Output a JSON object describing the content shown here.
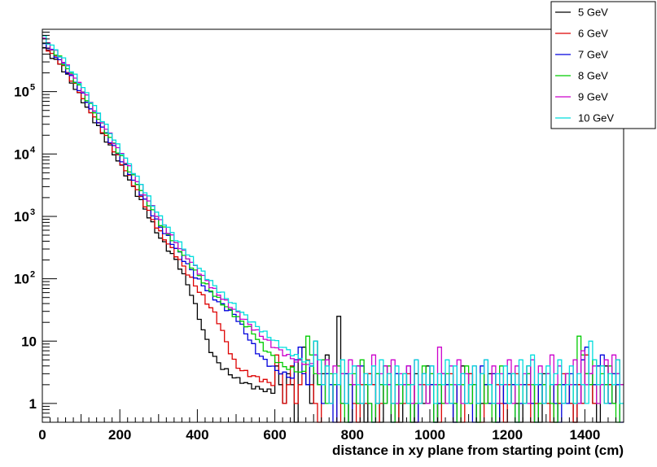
{
  "chart_data": {
    "type": "line",
    "step": true,
    "xlabel": "distance in xy plane from starting point (cm)",
    "ylabel": "",
    "xlim": [
      0,
      1500
    ],
    "ylim": [
      0.5,
      1000000
    ],
    "yscale": "log",
    "bin_width": 10,
    "grid": false,
    "legend_position": "top-right",
    "x_ticks": [
      {
        "value": 0,
        "label": "0"
      },
      {
        "value": 200,
        "label": "200"
      },
      {
        "value": 400,
        "label": "400"
      },
      {
        "value": 600,
        "label": "600"
      },
      {
        "value": 800,
        "label": "800"
      },
      {
        "value": 1000,
        "label": "1000"
      },
      {
        "value": 1200,
        "label": "1200"
      },
      {
        "value": 1400,
        "label": "1400"
      }
    ],
    "y_ticks": [
      {
        "value": 1,
        "base": "1",
        "exp": ""
      },
      {
        "value": 10,
        "base": "10",
        "exp": ""
      },
      {
        "value": 100,
        "base": "10",
        "exp": "2"
      },
      {
        "value": 1000,
        "base": "10",
        "exp": "3"
      },
      {
        "value": 10000,
        "base": "10",
        "exp": "4"
      },
      {
        "value": 100000,
        "base": "10",
        "exp": "5"
      }
    ],
    "series": [
      {
        "name": "5 GeV",
        "color": "#000000",
        "head_points": [
          [
            0,
            550000
          ],
          [
            50,
            250000
          ],
          [
            100,
            80000
          ],
          [
            150,
            24000
          ],
          [
            200,
            7000
          ],
          [
            250,
            2000
          ],
          [
            300,
            500
          ],
          [
            350,
            180
          ],
          [
            380,
            70
          ],
          [
            400,
            30
          ],
          [
            420,
            12
          ],
          [
            440,
            6
          ],
          [
            460,
            4
          ],
          [
            500,
            2.5
          ],
          [
            550,
            1.8
          ],
          [
            600,
            1.5
          ]
        ],
        "noise": [
          4,
          2,
          1,
          3,
          2,
          0,
          5,
          8,
          2,
          1,
          10,
          2,
          3,
          6,
          1,
          2,
          25,
          3,
          1,
          0,
          2,
          4,
          1,
          0,
          3,
          2,
          1,
          0,
          4,
          2,
          1,
          3,
          0,
          2,
          1,
          0,
          3,
          2,
          1,
          4,
          2,
          0,
          1,
          3,
          2,
          1,
          0,
          2,
          4,
          1,
          3,
          2,
          0,
          1,
          2,
          3,
          1,
          0,
          2,
          1,
          3,
          2,
          1,
          0,
          2,
          4,
          1,
          2,
          0,
          3,
          1,
          2,
          0,
          1,
          2,
          3,
          1,
          0,
          2,
          1,
          3,
          2,
          1,
          0,
          2
        ]
      },
      {
        "name": "6 GeV",
        "color": "#dd0000",
        "head_points": [
          [
            0,
            600000
          ],
          [
            50,
            280000
          ],
          [
            100,
            90000
          ],
          [
            150,
            27000
          ],
          [
            200,
            8000
          ],
          [
            250,
            2300
          ],
          [
            300,
            600
          ],
          [
            350,
            220
          ],
          [
            400,
            70
          ],
          [
            450,
            25
          ],
          [
            480,
            8
          ],
          [
            500,
            4
          ],
          [
            530,
            3
          ],
          [
            560,
            2.5
          ],
          [
            600,
            2
          ]
        ],
        "noise": [
          6,
          3,
          1,
          2,
          4,
          1,
          2,
          3,
          5,
          2,
          1,
          0,
          2,
          3,
          1,
          2,
          0,
          1,
          3,
          2,
          1,
          0,
          2,
          1,
          3,
          2,
          0,
          1,
          2,
          3,
          1,
          0,
          2,
          1,
          3,
          2,
          0,
          1,
          2,
          1,
          3,
          2,
          0,
          1,
          2,
          3,
          1,
          2,
          0,
          1,
          3,
          2,
          1,
          0,
          2,
          1,
          3,
          2,
          1,
          0,
          2,
          1,
          3,
          2,
          1,
          2,
          0,
          1,
          3,
          2,
          1,
          0,
          2,
          1,
          3,
          2,
          1,
          0,
          2,
          1
        ]
      },
      {
        "name": "7 GeV",
        "color": "#0000dd",
        "head_points": [
          [
            0,
            650000
          ],
          [
            50,
            300000
          ],
          [
            100,
            100000
          ],
          [
            150,
            30000
          ],
          [
            200,
            9000
          ],
          [
            250,
            2700
          ],
          [
            300,
            750
          ],
          [
            350,
            280
          ],
          [
            400,
            100
          ],
          [
            450,
            45
          ],
          [
            500,
            25
          ],
          [
            530,
            12
          ],
          [
            560,
            6
          ],
          [
            600,
            3.5
          ],
          [
            650,
            2.5
          ]
        ],
        "noise": [
          5,
          8,
          3,
          2,
          4,
          6,
          2,
          1,
          3,
          2,
          0,
          2,
          1,
          3,
          0,
          2,
          1,
          4,
          2,
          1,
          0,
          3,
          2,
          1,
          2,
          0,
          3,
          1,
          2,
          4,
          1,
          0,
          2,
          3,
          1,
          2,
          0,
          1,
          3,
          2,
          1,
          0,
          2,
          3,
          1,
          2,
          0,
          1,
          4,
          2,
          1,
          3,
          0,
          2,
          1,
          3,
          2,
          0,
          1,
          2,
          3,
          1,
          0,
          2,
          1,
          3,
          2,
          1,
          0,
          2,
          1,
          3,
          2,
          1
        ]
      },
      {
        "name": "8 GeV",
        "color": "#00cc00",
        "head_points": [
          [
            0,
            700000
          ],
          [
            50,
            320000
          ],
          [
            100,
            110000
          ],
          [
            150,
            33000
          ],
          [
            200,
            10000
          ],
          [
            250,
            3000
          ],
          [
            300,
            850
          ],
          [
            350,
            320
          ],
          [
            400,
            120
          ],
          [
            450,
            50
          ],
          [
            500,
            25
          ],
          [
            540,
            15
          ],
          [
            570,
            8
          ],
          [
            620,
            4
          ],
          [
            680,
            3
          ]
        ],
        "noise": [
          12,
          6,
          3,
          2,
          5,
          1,
          3,
          2,
          4,
          1,
          0,
          2,
          3,
          1,
          5,
          2,
          1,
          0,
          3,
          2,
          1,
          4,
          0,
          2,
          1,
          3,
          2,
          0,
          1,
          2,
          4,
          1,
          3,
          0,
          2,
          1,
          3,
          2,
          1,
          0,
          2,
          4,
          1,
          2,
          0,
          3,
          1,
          2,
          0,
          1,
          4,
          2,
          1,
          3,
          0,
          2,
          1,
          3,
          2,
          0,
          1,
          2,
          3,
          1,
          0,
          2,
          1,
          3,
          2,
          1
        ]
      },
      {
        "name": "9 GeV",
        "color": "#cc00cc",
        "head_points": [
          [
            0,
            750000
          ],
          [
            50,
            340000
          ],
          [
            100,
            120000
          ],
          [
            150,
            37000
          ],
          [
            200,
            11000
          ],
          [
            250,
            3400
          ],
          [
            300,
            950
          ],
          [
            350,
            350
          ],
          [
            400,
            140
          ],
          [
            450,
            60
          ],
          [
            500,
            30
          ],
          [
            550,
            15
          ],
          [
            600,
            8
          ],
          [
            650,
            5
          ],
          [
            700,
            4
          ]
        ],
        "noise": [
          6,
          3,
          2,
          5,
          1,
          4,
          2,
          3,
          1,
          5,
          2,
          4,
          1,
          3,
          2,
          6,
          1,
          3,
          4,
          2,
          5,
          1,
          3,
          2,
          4,
          1,
          5,
          2,
          3,
          1,
          4,
          2,
          8,
          3,
          1,
          4,
          2,
          5,
          1,
          3,
          2,
          4,
          1,
          3,
          5,
          2,
          4,
          1,
          3,
          2,
          5,
          1,
          4,
          2,
          3,
          1,
          5,
          2,
          4,
          1,
          3,
          6,
          2,
          4,
          1,
          3,
          2,
          5,
          1,
          7,
          2,
          3,
          4,
          1,
          2,
          5,
          3
        ]
      },
      {
        "name": "10 GeV",
        "color": "#00dddd",
        "head_points": [
          [
            0,
            800000
          ],
          [
            50,
            360000
          ],
          [
            100,
            130000
          ],
          [
            150,
            40000
          ],
          [
            200,
            12000
          ],
          [
            250,
            3700
          ],
          [
            300,
            1050
          ],
          [
            350,
            400
          ],
          [
            400,
            160
          ],
          [
            450,
            70
          ],
          [
            500,
            35
          ],
          [
            550,
            18
          ],
          [
            600,
            10
          ],
          [
            650,
            6
          ],
          [
            700,
            4
          ]
        ],
        "noise": [
          10,
          5,
          2,
          4,
          1,
          3,
          2,
          5,
          1,
          3,
          4,
          2,
          1,
          3,
          2,
          4,
          1,
          5,
          2,
          3,
          1,
          4,
          2,
          3,
          1,
          2,
          5,
          1,
          3,
          2,
          4,
          1,
          3,
          2,
          5,
          1,
          4,
          2,
          3,
          1,
          2,
          4,
          1,
          3,
          5,
          2,
          1,
          3,
          2,
          4,
          1,
          3,
          2,
          5,
          1,
          4,
          6,
          2,
          3,
          1,
          4,
          2,
          3,
          5,
          1,
          2,
          4,
          1,
          3,
          2,
          1
        ]
      }
    ]
  }
}
